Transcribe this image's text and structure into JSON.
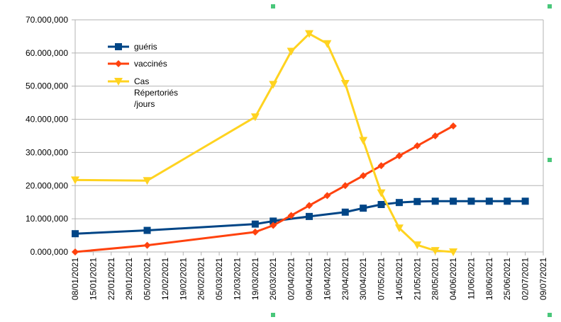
{
  "chart_data": {
    "type": "line",
    "title": "",
    "xlabel": "",
    "ylabel": "",
    "ylim": [
      0,
      70000000
    ],
    "y_ticks": [
      "0.000,000",
      "10.000,000",
      "20.000,000",
      "30.000,000",
      "40.000,000",
      "50.000,000",
      "60.000,000",
      "70.000,000"
    ],
    "grid": "horizontal",
    "legend_position": "top-left-inside",
    "categories": [
      "08/01/2021",
      "15/01/2021",
      "22/01/2021",
      "29/01/2021",
      "05/02/2021",
      "12/02/2021",
      "19/02/2021",
      "26/02/2021",
      "05/03/2021",
      "12/03/2021",
      "19/03/2021",
      "26/03/2021",
      "02/04/2021",
      "09/04/2021",
      "16/04/2021",
      "23/04/2021",
      "30/04/2021",
      "07/05/2021",
      "14/05/2021",
      "21/05/2021",
      "28/05/2021",
      "04/06/2021",
      "11/06/2021",
      "18/06/2021",
      "25/06/2021",
      "02/07/2021",
      "09/07/2021"
    ],
    "series": [
      {
        "name": "guéris",
        "color": "#004586",
        "marker": "square",
        "points": [
          {
            "x": "08/01/2021",
            "y": 5500000
          },
          {
            "x": "05/02/2021",
            "y": 6500000
          },
          {
            "x": "19/03/2021",
            "y": 8400000
          },
          {
            "x": "26/03/2021",
            "y": 9300000
          },
          {
            "x": "09/04/2021",
            "y": 10700000
          },
          {
            "x": "23/04/2021",
            "y": 12000000
          },
          {
            "x": "30/04/2021",
            "y": 13200000
          },
          {
            "x": "07/05/2021",
            "y": 14300000
          },
          {
            "x": "14/05/2021",
            "y": 14900000
          },
          {
            "x": "21/05/2021",
            "y": 15200000
          },
          {
            "x": "28/05/2021",
            "y": 15300000
          },
          {
            "x": "04/06/2021",
            "y": 15300000
          },
          {
            "x": "11/06/2021",
            "y": 15300000
          },
          {
            "x": "18/06/2021",
            "y": 15300000
          },
          {
            "x": "25/06/2021",
            "y": 15300000
          },
          {
            "x": "02/07/2021",
            "y": 15300000
          }
        ]
      },
      {
        "name": "vaccinés",
        "color": "#ff420e",
        "marker": "diamond",
        "points": [
          {
            "x": "08/01/2021",
            "y": 0
          },
          {
            "x": "05/02/2021",
            "y": 2000000
          },
          {
            "x": "19/03/2021",
            "y": 6000000
          },
          {
            "x": "26/03/2021",
            "y": 8000000
          },
          {
            "x": "02/04/2021",
            "y": 11000000
          },
          {
            "x": "09/04/2021",
            "y": 14000000
          },
          {
            "x": "16/04/2021",
            "y": 17000000
          },
          {
            "x": "23/04/2021",
            "y": 20000000
          },
          {
            "x": "30/04/2021",
            "y": 23000000
          },
          {
            "x": "07/05/2021",
            "y": 26000000
          },
          {
            "x": "14/05/2021",
            "y": 29000000
          },
          {
            "x": "21/05/2021",
            "y": 32000000
          },
          {
            "x": "28/05/2021",
            "y": 35000000
          },
          {
            "x": "04/06/2021",
            "y": 38000000
          }
        ]
      },
      {
        "name": "Cas Répertoriés /jours",
        "name_lines": [
          "Cas",
          "Répertoriés",
          "/jours"
        ],
        "color": "#ffd320",
        "marker": "triangle-down",
        "points": [
          {
            "x": "08/01/2021",
            "y": 21700000
          },
          {
            "x": "05/02/2021",
            "y": 21500000
          },
          {
            "x": "19/03/2021",
            "y": 40700000
          },
          {
            "x": "26/03/2021",
            "y": 50500000
          },
          {
            "x": "02/04/2021",
            "y": 60500000
          },
          {
            "x": "09/04/2021",
            "y": 65800000
          },
          {
            "x": "16/04/2021",
            "y": 62800000
          },
          {
            "x": "23/04/2021",
            "y": 50800000
          },
          {
            "x": "30/04/2021",
            "y": 33600000
          },
          {
            "x": "07/05/2021",
            "y": 17800000
          },
          {
            "x": "14/05/2021",
            "y": 7200000
          },
          {
            "x": "21/05/2021",
            "y": 2100000
          },
          {
            "x": "28/05/2021",
            "y": 400000
          },
          {
            "x": "04/06/2021",
            "y": 0
          }
        ]
      }
    ]
  }
}
